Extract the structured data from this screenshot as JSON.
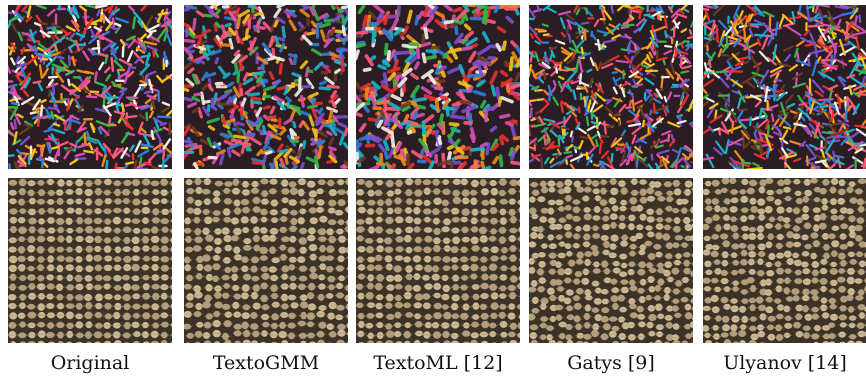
{
  "figure": {
    "methods": [
      {
        "label": "Original"
      },
      {
        "label": "TextoGMM"
      },
      {
        "label": "TextoML [12]"
      },
      {
        "label": "Gatys [9]"
      },
      {
        "label": "Ulyanov [14]"
      }
    ],
    "rows": [
      "sprinkles-texture",
      "burlap-texture"
    ],
    "palette": {
      "sprinkles_bg": "#2a1e24",
      "sprinkles": [
        "#e8312f",
        "#f7c21a",
        "#2f7fd6",
        "#38b54a",
        "#f08a1e",
        "#d64fb0",
        "#7a4fd0",
        "#f5f0e6",
        "#1bb3c9",
        "#ff5a7a",
        "#6b3b22"
      ],
      "burlap_bg": "#3b3327",
      "burlap_fiber": "#b49d7a",
      "burlap_light": "#cdb994"
    }
  }
}
